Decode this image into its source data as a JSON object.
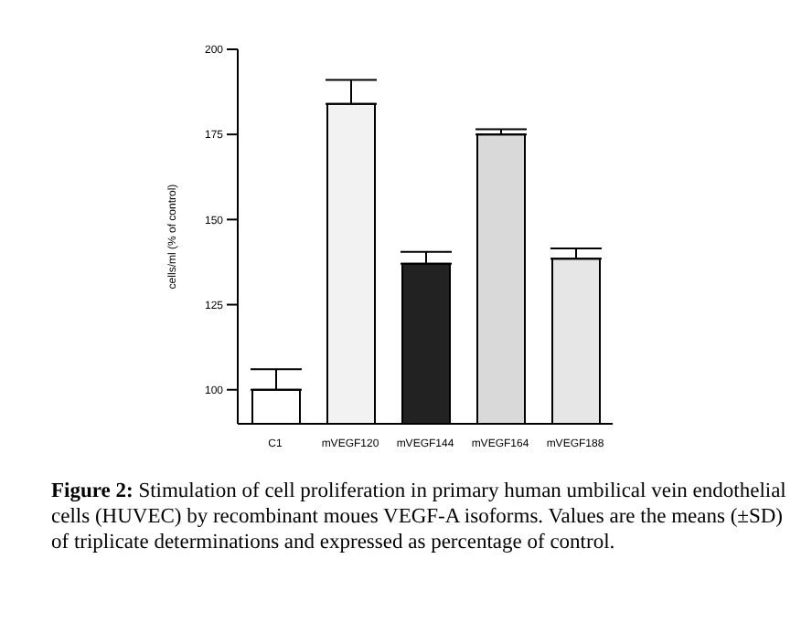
{
  "chart_data": {
    "type": "bar",
    "ylabel": "cells/ml (% of control)",
    "categories": [
      "C1",
      "mVEGF120",
      "mVEGF144",
      "mVEGF164",
      "mVEGF188"
    ],
    "values": [
      100,
      184,
      137,
      175,
      138.5
    ],
    "errors": [
      [
        100,
        106
      ],
      [
        184,
        191
      ],
      [
        137,
        140.5
      ],
      [
        175,
        176.5
      ],
      [
        138.5,
        141.5
      ]
    ],
    "colors": [
      "#ffffff",
      "#f2f2f2",
      "#222222",
      "#d9d9d9",
      "#e6e6e6"
    ],
    "ylim": [
      90,
      200
    ],
    "yticks": [
      100,
      125,
      150,
      175,
      200
    ],
    "grid": false,
    "legend": false,
    "annotations": [
      "Figure 2: Stimulation of cell proliferation in primary human umbilical vein endothelial cells (HUVEC) by recombinant moues VEGF-A isoforms. Values are the means (±SD) of triplicate determinations and expressed as percentage of control."
    ]
  }
}
